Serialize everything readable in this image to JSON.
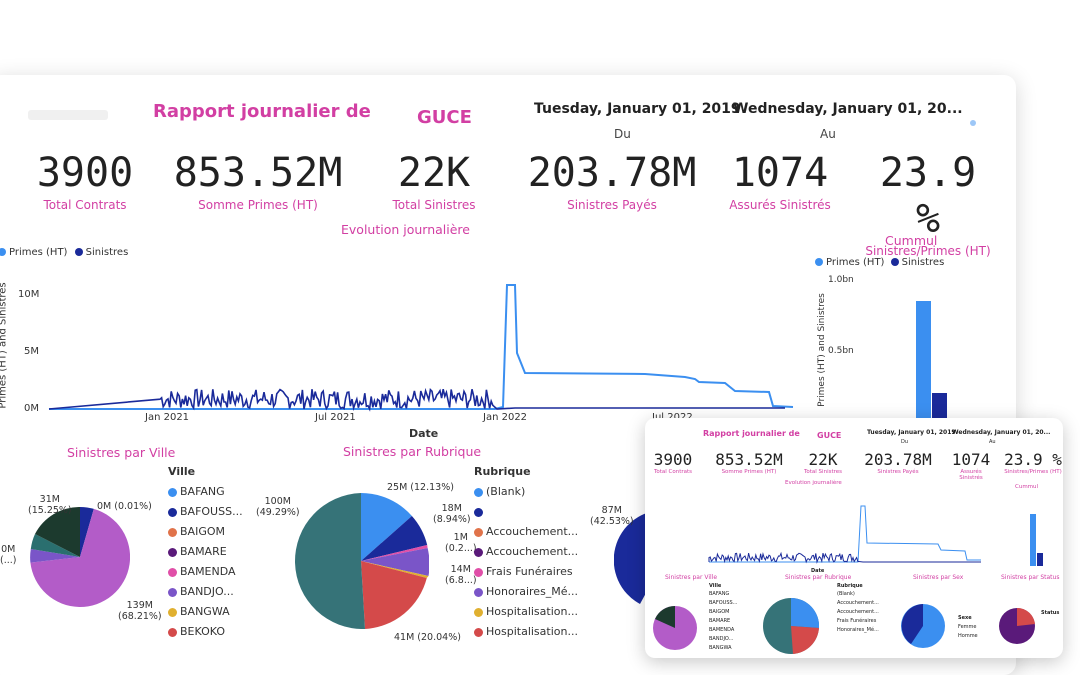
{
  "header": {
    "title": "Rapport journalier de",
    "org": "GUCE",
    "date_from": "Tuesday, January 01, 2019",
    "date_from_label": "Du",
    "date_to": "Wednesday, January 01, 20...",
    "date_to_label": "Au"
  },
  "kpis": [
    {
      "value": "3900",
      "label": "Total Contrats"
    },
    {
      "value": "853.52M",
      "label": "Somme Primes (HT)"
    },
    {
      "value": "22K",
      "label": "Total Sinistres"
    },
    {
      "value": "203.78M",
      "label": "Sinistres Payés"
    },
    {
      "value": "1074",
      "label": "Assurés Sinistrés"
    },
    {
      "value": "23.9 %",
      "label": "Sinistres/Primes (HT)"
    }
  ],
  "colors": {
    "accent": "#d23fa3",
    "primes": "#3b8ff0",
    "sinistres": "#1a2a9a"
  },
  "line_chart": {
    "title": "Evolution journalière",
    "legend": [
      "Primes (HT)",
      "Sinistres"
    ],
    "ylabel": "Primes (HT) and Sinistres",
    "xlabel": "Date",
    "yticks": [
      "10M",
      "5M",
      "0M"
    ],
    "xticks": [
      "Jan 2021",
      "Jul 2021",
      "Jan 2022",
      "Jul 2022"
    ]
  },
  "bar_chart": {
    "title": "Cummul",
    "legend": [
      "Primes (HT)",
      "Sinistres"
    ],
    "ylabel": "Primes (HT) and Sinistres",
    "yticks": [
      "1.0bn",
      "0.5bn"
    ]
  },
  "pie_ville": {
    "title": "Sinistres par Ville",
    "legend_title": "Ville",
    "legend": [
      {
        "label": "BAFANG",
        "color": "#3b8ff0"
      },
      {
        "label": "BAFOUSS...",
        "color": "#1a2a9a"
      },
      {
        "label": "BAIGOM",
        "color": "#e0734a"
      },
      {
        "label": "BAMARE",
        "color": "#5a1a7a"
      },
      {
        "label": "BAMENDA",
        "color": "#e04fa8"
      },
      {
        "label": "BANDJO...",
        "color": "#7a55c8"
      },
      {
        "label": "BANGWA",
        "color": "#e0b030"
      },
      {
        "label": "BEKOKO",
        "color": "#d44a4a"
      }
    ],
    "labels": [
      "31M",
      "(15.25%)",
      "0M (0.01%)",
      "139M",
      "(68.21%)",
      "0M",
      "(...)"
    ]
  },
  "pie_rubrique": {
    "title": "Sinistres par Rubrique",
    "legend_title": "Rubrique",
    "legend": [
      {
        "label": "(Blank)",
        "color": "#3b8ff0"
      },
      {
        "label": "",
        "color": "#1a2a9a"
      },
      {
        "label": "Accouchement...",
        "color": "#e0734a"
      },
      {
        "label": "Accouchement...",
        "color": "#5a1a7a"
      },
      {
        "label": "Frais Funéraires",
        "color": "#e04fa8"
      },
      {
        "label": "Honoraires_Mé...",
        "color": "#7a55c8"
      },
      {
        "label": "Hospitalisation...",
        "color": "#e0b030"
      },
      {
        "label": "Hospitalisation...",
        "color": "#d44a4a"
      }
    ],
    "labels": [
      "25M (12.13%)",
      "18M",
      "(8.94%)",
      "1M",
      "(0.2...)",
      "14M",
      "(6.8...)",
      "100M",
      "(49.29%)",
      "41M (20.04%)"
    ]
  },
  "pie_sex": {
    "labels": [
      "87M",
      "(42.53%)"
    ]
  },
  "mini": {
    "sections": [
      "Sinistres par Ville",
      "Sinistres par Rubrique",
      "Sinistres par Sex",
      "Sinistres par Status"
    ],
    "sex_legend": [
      "Sexe",
      "Femme",
      "Homme"
    ],
    "status_legend": [
      "Status"
    ]
  }
}
